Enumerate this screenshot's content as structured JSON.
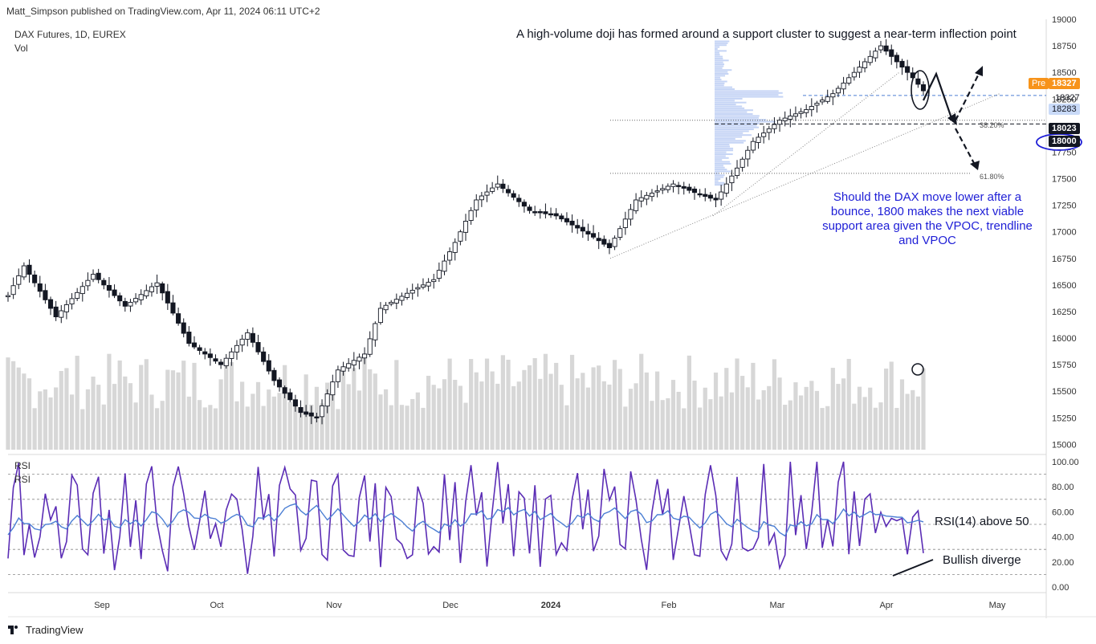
{
  "header": {
    "publisher": "Matt_Simpson published on TradingView.com, Apr 11, 2024 06:11 UTC+2"
  },
  "legend": {
    "symbol": "DAX Futures, 1D, EUREX",
    "volume": "Vol",
    "rsi_primary": "RSI",
    "rsi_secondary": "RSI"
  },
  "annotations": {
    "top": "A high-volume doji has formed around a support cluster to suggest a near-term inflection point",
    "support_note": "Should the DAX move lower after a bounce, 1800 makes the next viable support area given the VPOC, trendline and VPOC",
    "rsi_note": "RSI(14) above 50",
    "divergence_note": "Bullish diverge"
  },
  "brand": "TradingView",
  "price_tags": {
    "pre_label": "Pre",
    "pre_value": "18327",
    "last_value": "18327",
    "blue_value": "18283",
    "black_value": "18023",
    "circled_value": "18000"
  },
  "fib_labels": [
    "38.20%",
    "61.80%"
  ],
  "colors": {
    "bull_candle": "#ffffff",
    "bear_candle": "#131722",
    "volume": "#c9c9c9",
    "rsi_fast": "#5b2db5",
    "rsi_slow": "#4c7fd4",
    "pre_tag": "#f7931a",
    "blue_tag": "#c9daf8",
    "circle": "#1e1ed6",
    "annotation_blue": "#1e1ed6"
  },
  "chart_data": [
    {
      "type": "candlestick",
      "title": "DAX Futures, 1D, EUREX",
      "x_ticks": [
        "Sep",
        "Oct",
        "Nov",
        "Dec",
        "2024",
        "Feb",
        "Mar",
        "Apr",
        "May"
      ],
      "y_ticks": [
        15000,
        15250,
        15500,
        15750,
        16000,
        16250,
        16500,
        16750,
        17000,
        17250,
        17500,
        17750,
        18000,
        18250,
        18500,
        18750,
        19000
      ],
      "ylim": [
        14950,
        19000
      ],
      "anchors": [
        {
          "i": 0,
          "close": 16400
        },
        {
          "i": 3,
          "close": 16680
        },
        {
          "i": 9,
          "close": 16200
        },
        {
          "i": 16,
          "close": 16600
        },
        {
          "i": 22,
          "close": 16300
        },
        {
          "i": 28,
          "close": 16520
        },
        {
          "i": 34,
          "close": 15950
        },
        {
          "i": 40,
          "close": 15750
        },
        {
          "i": 45,
          "close": 16050
        },
        {
          "i": 50,
          "close": 15600
        },
        {
          "i": 55,
          "close": 15300
        },
        {
          "i": 58,
          "close": 15250
        },
        {
          "i": 62,
          "close": 15700
        },
        {
          "i": 67,
          "close": 15850
        },
        {
          "i": 70,
          "close": 16280
        },
        {
          "i": 76,
          "close": 16450
        },
        {
          "i": 80,
          "close": 16550
        },
        {
          "i": 84,
          "close": 16900
        },
        {
          "i": 88,
          "close": 17300
        },
        {
          "i": 92,
          "close": 17450
        },
        {
          "i": 98,
          "close": 17200
        },
        {
          "i": 103,
          "close": 17150
        },
        {
          "i": 110,
          "close": 16950
        },
        {
          "i": 113,
          "close": 16850
        },
        {
          "i": 118,
          "close": 17300
        },
        {
          "i": 125,
          "close": 17450
        },
        {
          "i": 130,
          "close": 17350
        },
        {
          "i": 133,
          "close": 17300
        },
        {
          "i": 137,
          "close": 17600
        },
        {
          "i": 140,
          "close": 17850
        },
        {
          "i": 145,
          "close": 18050
        },
        {
          "i": 150,
          "close": 18150
        },
        {
          "i": 155,
          "close": 18300
        },
        {
          "i": 160,
          "close": 18550
        },
        {
          "i": 164,
          "close": 18750
        },
        {
          "i": 167,
          "close": 18600
        },
        {
          "i": 170,
          "close": 18450
        },
        {
          "i": 172,
          "close": 18327
        }
      ],
      "candle_count": 173,
      "volume_ylim": [
        0,
        1
      ],
      "volume_note": "relative bar heights"
    },
    {
      "type": "line",
      "title": "RSI",
      "y_ticks": [
        0,
        20,
        40,
        60,
        80,
        100
      ],
      "ylim": [
        0,
        100
      ],
      "levels": [
        10,
        30,
        50,
        70,
        90
      ],
      "rsi_anchor_lows": [
        {
          "i": 0,
          "v": 10
        },
        {
          "i": 60,
          "v": 10
        },
        {
          "i": 95,
          "v": 5
        },
        {
          "i": 112,
          "v": 10
        },
        {
          "i": 168,
          "v": 20
        }
      ],
      "rsi_anchor_highs": [
        {
          "i": 14,
          "v": 95
        },
        {
          "i": 60,
          "v": 100
        },
        {
          "i": 85,
          "v": 100
        },
        {
          "i": 142,
          "v": 100
        },
        {
          "i": 165,
          "v": 100
        }
      ],
      "slow_rsi_end": 52,
      "fast_rsi_end": 27
    }
  ]
}
